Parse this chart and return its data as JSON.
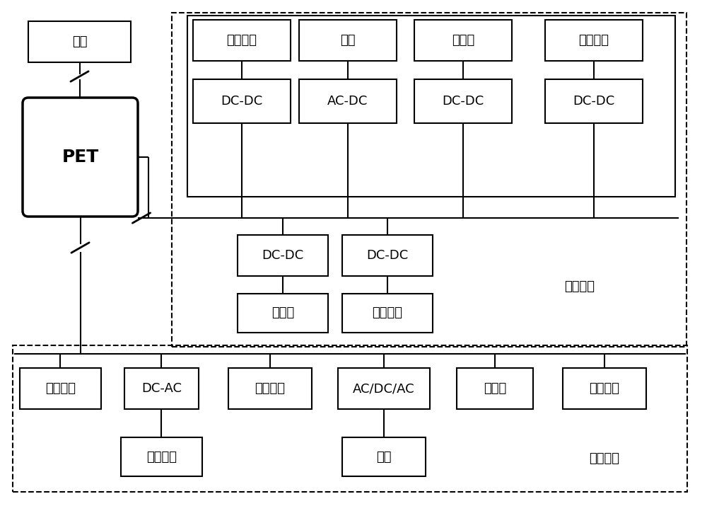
{
  "bg_color": "#ffffff",
  "main_grid_label": "主网",
  "pet_label": "PET",
  "dc_network_label": "直流网络",
  "ac_network_label": "交流网络",
  "top_row": [
    "光伏电池",
    "风机",
    "蓄电池",
    "燃料电池"
  ],
  "mid_row": [
    "DC-DC",
    "AC-DC",
    "DC-DC",
    "DC-DC"
  ],
  "dc_lower_row": [
    "DC-DC",
    "DC-DC"
  ],
  "dc_load_row": [
    "充电桩",
    "直流负载"
  ],
  "ac_row": [
    "居民负荷",
    "DC-AC",
    "燃气轮机",
    "AC/DC/AC",
    "柴油机",
    "交流负载"
  ],
  "ac_lower_row": [
    "光伏电池",
    "风机"
  ],
  "font_size_cn": 13,
  "font_size_en": 13,
  "font_size_pet": 18,
  "font_size_label": 13
}
